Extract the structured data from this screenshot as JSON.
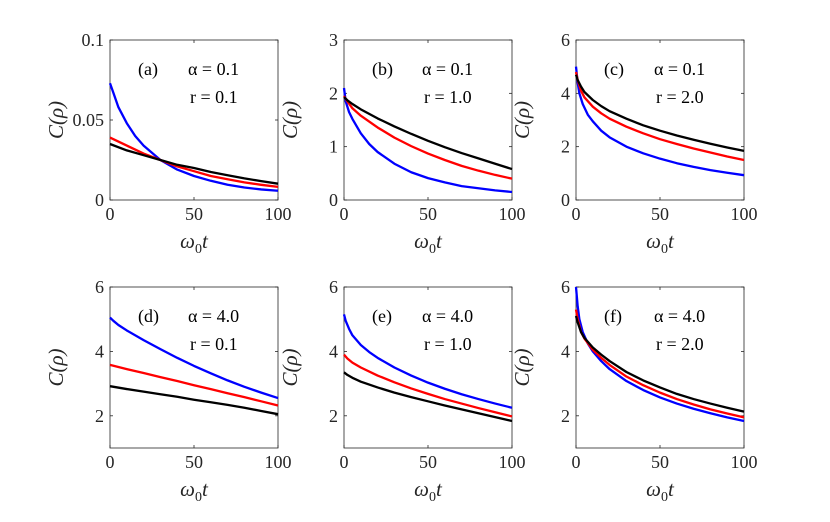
{
  "colors": {
    "blue": "#0000ff",
    "red": "#ff0000",
    "black": "#000000",
    "axis": "#262626"
  },
  "chart_data": [
    {
      "type": "line",
      "panel": "(a)",
      "alpha_label": "α = 0.1",
      "r_label": "r = 0.1",
      "xlabel": "ω0t",
      "ylabel": "C(ρ)",
      "xlim": [
        0,
        100
      ],
      "ylim": [
        0,
        0.1
      ],
      "xticks": [
        "0",
        "50",
        "100"
      ],
      "xtick_values": [
        0,
        50,
        100
      ],
      "yticks": [
        "0",
        "0.05",
        "0.1"
      ],
      "ytick_values": [
        0,
        0.05,
        0.1
      ],
      "series": [
        {
          "color": "blue",
          "x": [
            0,
            2,
            5,
            10,
            15,
            20,
            30,
            40,
            50,
            60,
            70,
            80,
            90,
            100
          ],
          "y": [
            0.073,
            0.067,
            0.058,
            0.048,
            0.04,
            0.034,
            0.025,
            0.019,
            0.015,
            0.012,
            0.0095,
            0.0078,
            0.0066,
            0.0058
          ]
        },
        {
          "color": "red",
          "x": [
            0,
            10,
            20,
            30,
            40,
            50,
            60,
            70,
            80,
            90,
            100
          ],
          "y": [
            0.039,
            0.034,
            0.029,
            0.025,
            0.021,
            0.018,
            0.015,
            0.013,
            0.011,
            0.0095,
            0.0082
          ]
        },
        {
          "color": "black",
          "x": [
            0,
            10,
            20,
            30,
            40,
            50,
            60,
            70,
            80,
            90,
            100
          ],
          "y": [
            0.035,
            0.031,
            0.028,
            0.025,
            0.022,
            0.02,
            0.0175,
            0.0155,
            0.0135,
            0.0118,
            0.0102
          ]
        }
      ]
    },
    {
      "type": "line",
      "panel": "(b)",
      "alpha_label": "α = 0.1",
      "r_label": "r = 1.0",
      "xlabel": "ω0t",
      "ylabel": "C(ρ)",
      "xlim": [
        0,
        100
      ],
      "ylim": [
        0,
        3
      ],
      "xticks": [
        "0",
        "50",
        "100"
      ],
      "xtick_values": [
        0,
        50,
        100
      ],
      "yticks": [
        "0",
        "1",
        "2",
        "3"
      ],
      "ytick_values": [
        0,
        1,
        2,
        3
      ],
      "series": [
        {
          "color": "blue",
          "x": [
            0,
            1,
            3,
            5,
            10,
            15,
            20,
            30,
            40,
            50,
            60,
            70,
            80,
            90,
            100
          ],
          "y": [
            2.1,
            1.85,
            1.65,
            1.52,
            1.25,
            1.05,
            0.9,
            0.68,
            0.52,
            0.41,
            0.33,
            0.26,
            0.22,
            0.18,
            0.15
          ]
        },
        {
          "color": "red",
          "x": [
            0,
            2,
            5,
            10,
            20,
            30,
            40,
            50,
            60,
            70,
            80,
            90,
            100
          ],
          "y": [
            1.95,
            1.85,
            1.72,
            1.58,
            1.36,
            1.17,
            1.01,
            0.87,
            0.75,
            0.64,
            0.55,
            0.47,
            0.4
          ]
        },
        {
          "color": "black",
          "x": [
            0,
            2,
            5,
            10,
            20,
            30,
            40,
            50,
            60,
            70,
            80,
            90,
            100
          ],
          "y": [
            1.93,
            1.87,
            1.8,
            1.7,
            1.53,
            1.38,
            1.24,
            1.11,
            0.99,
            0.88,
            0.78,
            0.68,
            0.58
          ]
        }
      ]
    },
    {
      "type": "line",
      "panel": "(c)",
      "alpha_label": "α = 0.1",
      "r_label": "r = 2.0",
      "xlabel": "ω0t",
      "ylabel": "C(ρ)",
      "xlim": [
        0,
        100
      ],
      "ylim": [
        0,
        6
      ],
      "xticks": [
        "0",
        "50",
        "100"
      ],
      "xtick_values": [
        0,
        50,
        100
      ],
      "yticks": [
        "0",
        "2",
        "4",
        "6"
      ],
      "ytick_values": [
        0,
        2,
        4,
        6
      ],
      "series": [
        {
          "color": "blue",
          "x": [
            0,
            1,
            2,
            4,
            7,
            10,
            15,
            20,
            30,
            40,
            50,
            60,
            70,
            80,
            90,
            100
          ],
          "y": [
            5.0,
            4.4,
            4.0,
            3.6,
            3.2,
            2.95,
            2.6,
            2.35,
            2.0,
            1.75,
            1.55,
            1.38,
            1.24,
            1.12,
            1.02,
            0.93
          ]
        },
        {
          "color": "red",
          "x": [
            0,
            1,
            3,
            5,
            10,
            15,
            20,
            30,
            40,
            50,
            60,
            70,
            80,
            90,
            100
          ],
          "y": [
            4.8,
            4.5,
            4.1,
            3.85,
            3.5,
            3.25,
            3.05,
            2.75,
            2.5,
            2.28,
            2.1,
            1.93,
            1.78,
            1.63,
            1.5
          ]
        },
        {
          "color": "black",
          "x": [
            0,
            1,
            3,
            5,
            10,
            15,
            20,
            30,
            40,
            50,
            60,
            70,
            80,
            90,
            100
          ],
          "y": [
            4.7,
            4.5,
            4.25,
            4.05,
            3.75,
            3.52,
            3.33,
            3.05,
            2.8,
            2.6,
            2.42,
            2.26,
            2.11,
            1.97,
            1.84
          ]
        }
      ]
    },
    {
      "type": "line",
      "panel": "(d)",
      "alpha_label": "α = 4.0",
      "r_label": "r = 0.1",
      "xlabel": "ω0t",
      "ylabel": "C(ρ)",
      "xlim": [
        0,
        100
      ],
      "ylim": [
        1,
        6
      ],
      "xticks": [
        "0",
        "50",
        "100"
      ],
      "xtick_values": [
        0,
        50,
        100
      ],
      "yticks": [
        "2",
        "4",
        "6"
      ],
      "ytick_values": [
        2,
        4,
        6
      ],
      "series": [
        {
          "color": "blue",
          "x": [
            0,
            2,
            5,
            10,
            20,
            30,
            40,
            50,
            60,
            70,
            80,
            90,
            100
          ],
          "y": [
            5.05,
            4.95,
            4.82,
            4.65,
            4.35,
            4.07,
            3.8,
            3.55,
            3.32,
            3.1,
            2.9,
            2.72,
            2.55
          ]
        },
        {
          "color": "red",
          "x": [
            0,
            10,
            20,
            30,
            40,
            50,
            60,
            70,
            80,
            90,
            100
          ],
          "y": [
            3.58,
            3.45,
            3.33,
            3.2,
            3.08,
            2.95,
            2.83,
            2.7,
            2.58,
            2.45,
            2.32
          ]
        },
        {
          "color": "black",
          "x": [
            0,
            10,
            20,
            30,
            40,
            50,
            60,
            70,
            80,
            90,
            100
          ],
          "y": [
            2.92,
            2.83,
            2.75,
            2.67,
            2.59,
            2.5,
            2.42,
            2.34,
            2.25,
            2.15,
            2.05
          ]
        }
      ]
    },
    {
      "type": "line",
      "panel": "(e)",
      "alpha_label": "α = 4.0",
      "r_label": "r = 1.0",
      "xlabel": "ω0t",
      "ylabel": "C(ρ)",
      "xlim": [
        0,
        100
      ],
      "ylim": [
        1,
        6
      ],
      "xticks": [
        "0",
        "50",
        "100"
      ],
      "xtick_values": [
        0,
        50,
        100
      ],
      "yticks": [
        "2",
        "4",
        "6"
      ],
      "ytick_values": [
        2,
        4,
        6
      ],
      "series": [
        {
          "color": "blue",
          "x": [
            0,
            1,
            3,
            5,
            10,
            15,
            20,
            30,
            40,
            50,
            60,
            70,
            80,
            90,
            100
          ],
          "y": [
            5.15,
            4.95,
            4.7,
            4.5,
            4.2,
            3.98,
            3.8,
            3.5,
            3.25,
            3.03,
            2.84,
            2.67,
            2.52,
            2.38,
            2.25
          ]
        },
        {
          "color": "red",
          "x": [
            0,
            2,
            5,
            10,
            20,
            30,
            40,
            50,
            60,
            70,
            80,
            90,
            100
          ],
          "y": [
            3.9,
            3.78,
            3.65,
            3.5,
            3.25,
            3.04,
            2.85,
            2.68,
            2.52,
            2.38,
            2.24,
            2.11,
            1.98
          ]
        },
        {
          "color": "black",
          "x": [
            0,
            2,
            5,
            10,
            20,
            30,
            40,
            50,
            60,
            70,
            80,
            90,
            100
          ],
          "y": [
            3.35,
            3.27,
            3.18,
            3.06,
            2.88,
            2.72,
            2.58,
            2.45,
            2.32,
            2.2,
            2.08,
            1.96,
            1.84
          ]
        }
      ]
    },
    {
      "type": "line",
      "panel": "(f)",
      "alpha_label": "α = 4.0",
      "r_label": "r = 2.0",
      "xlabel": "ω0t",
      "ylabel": "C(ρ)",
      "xlim": [
        0,
        100
      ],
      "ylim": [
        1,
        6
      ],
      "xticks": [
        "0",
        "50",
        "100"
      ],
      "xtick_values": [
        0,
        50,
        100
      ],
      "yticks": [
        "2",
        "4",
        "6"
      ],
      "ytick_values": [
        2,
        4,
        6
      ],
      "series": [
        {
          "color": "blue",
          "x": [
            0,
            1,
            2,
            4,
            7,
            10,
            15,
            20,
            30,
            40,
            50,
            60,
            70,
            80,
            90,
            100
          ],
          "y": [
            6.0,
            5.4,
            5.0,
            4.6,
            4.25,
            4.0,
            3.7,
            3.45,
            3.08,
            2.8,
            2.57,
            2.38,
            2.22,
            2.08,
            1.95,
            1.84
          ]
        },
        {
          "color": "red",
          "x": [
            0,
            1,
            3,
            5,
            10,
            15,
            20,
            30,
            40,
            50,
            60,
            70,
            80,
            90,
            100
          ],
          "y": [
            5.3,
            5.0,
            4.6,
            4.4,
            4.05,
            3.8,
            3.58,
            3.22,
            2.95,
            2.72,
            2.52,
            2.35,
            2.2,
            2.07,
            1.95
          ]
        },
        {
          "color": "black",
          "x": [
            0,
            1,
            3,
            5,
            10,
            15,
            20,
            30,
            40,
            50,
            60,
            70,
            80,
            90,
            100
          ],
          "y": [
            5.1,
            4.9,
            4.6,
            4.42,
            4.12,
            3.9,
            3.7,
            3.36,
            3.1,
            2.88,
            2.68,
            2.52,
            2.38,
            2.25,
            2.13
          ]
        }
      ]
    }
  ]
}
